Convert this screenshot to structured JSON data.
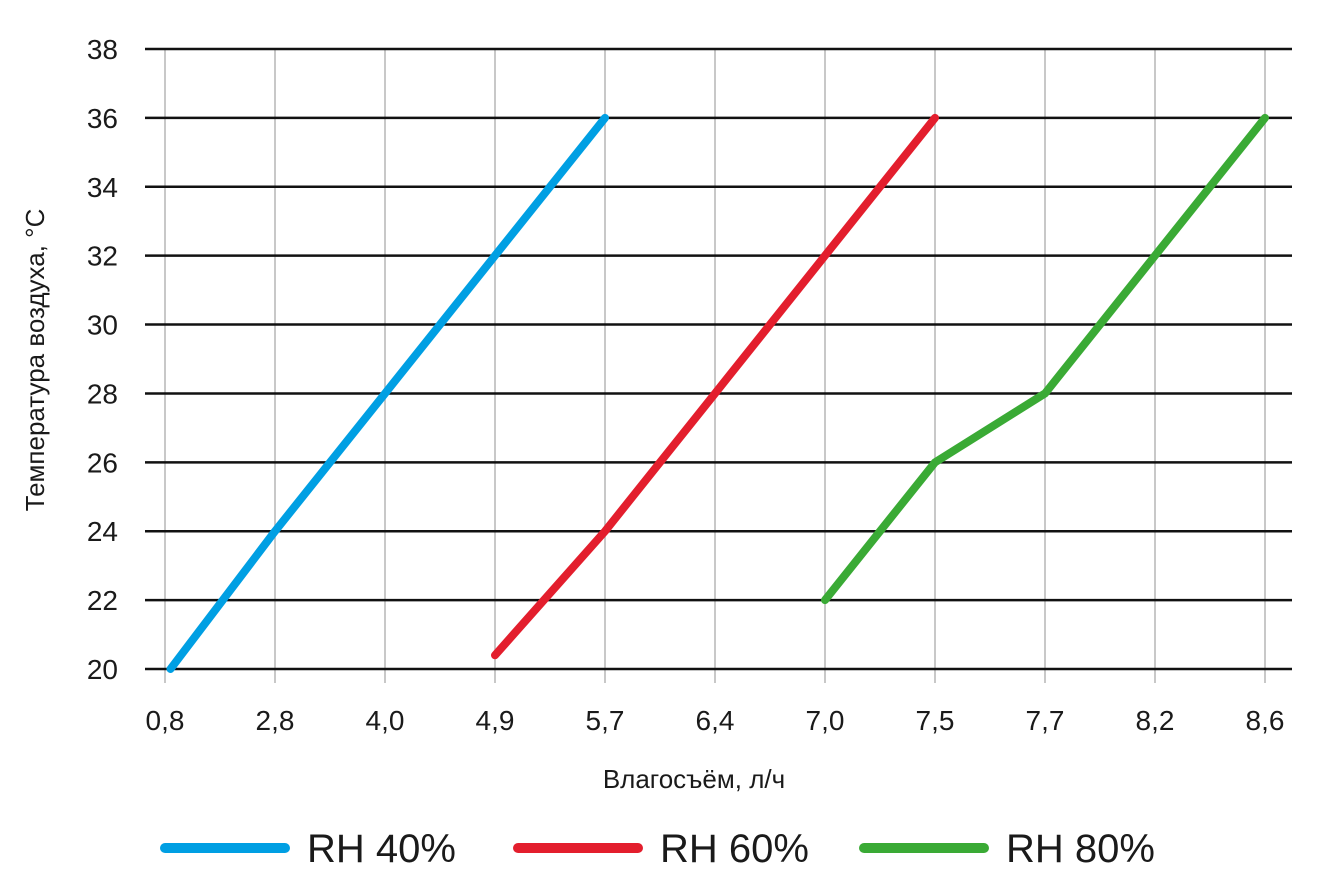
{
  "chart_data": {
    "type": "line",
    "title": "",
    "xlabel": "Влагосъём, л/ч",
    "ylabel": "Температура воздуха, °C",
    "categories": [
      "0,8",
      "2,8",
      "4,0",
      "4,9",
      "5,7",
      "6,4",
      "7,0",
      "7,5",
      "7,7",
      "8,2",
      "8,6"
    ],
    "y_ticks": [
      "20",
      "22",
      "24",
      "26",
      "28",
      "30",
      "32",
      "34",
      "36",
      "38"
    ],
    "ylim": [
      20,
      38
    ],
    "grid": true,
    "legend_position": "bottom",
    "series": [
      {
        "name": "RH 40%",
        "color": "#009fe3",
        "points": [
          [
            0.05,
            20
          ],
          [
            1,
            24
          ],
          [
            2,
            28
          ],
          [
            3,
            32
          ],
          [
            4,
            36
          ]
        ]
      },
      {
        "name": "RH 60%",
        "color": "#e31e2d",
        "points": [
          [
            3,
            20.4
          ],
          [
            4,
            24
          ],
          [
            5,
            28
          ],
          [
            6,
            32
          ],
          [
            7,
            36
          ]
        ]
      },
      {
        "name": "RH 80%",
        "color": "#3aaa35",
        "points": [
          [
            6,
            22
          ],
          [
            7,
            26
          ],
          [
            8,
            28
          ],
          [
            9,
            32
          ],
          [
            10,
            36
          ]
        ]
      }
    ]
  }
}
